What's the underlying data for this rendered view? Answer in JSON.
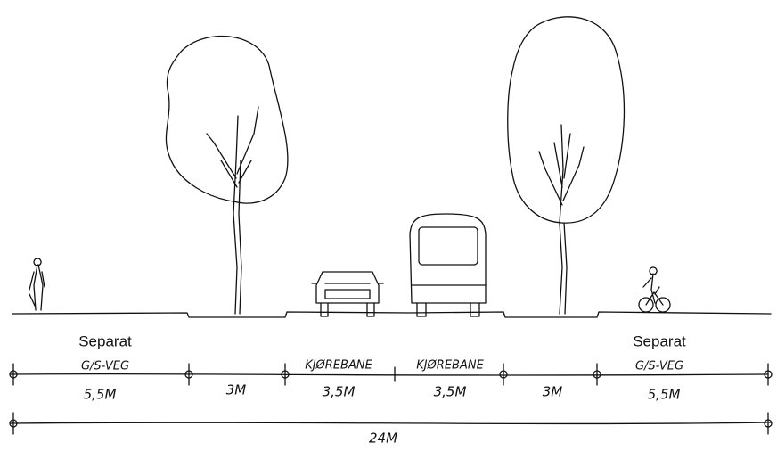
{
  "sections": [
    {
      "title": "Separat",
      "label": "G/S-VEG",
      "width": "5,5M"
    },
    {
      "width": "3M"
    },
    {
      "label": "KJØREBANE",
      "width": "3,5M"
    },
    {
      "label": "KJØREBANE",
      "width": "3,5M"
    },
    {
      "width": "3M"
    },
    {
      "title": "Separat",
      "label": "G/S-VEG",
      "width": "5,5M"
    }
  ],
  "total": "24M"
}
